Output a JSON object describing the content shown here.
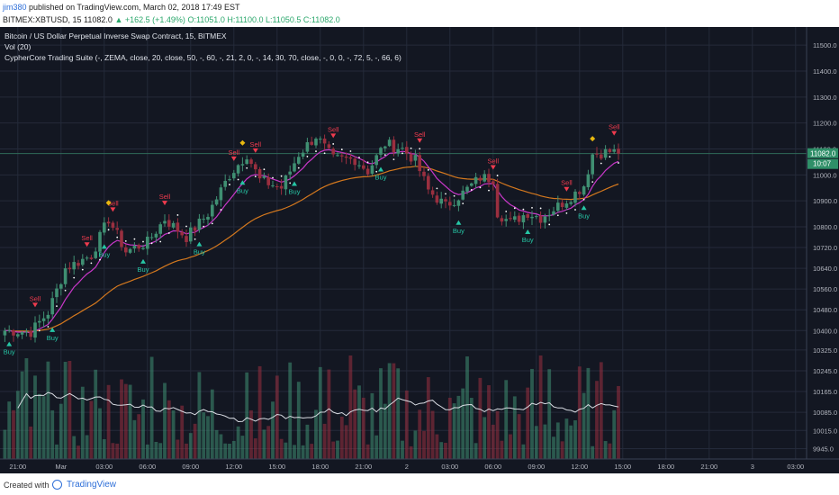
{
  "header": {
    "author": "jim380",
    "published": "published on TradingView.com, March 02, 2018 17:49 EST",
    "symbol": "BITMEX:XBTUSD, 15",
    "last_price": "11082.0",
    "change": "+162.5 (+1.49%)",
    "ohlc": "O:11051.0 H:11100.0 L:11050.5 C:11082.0"
  },
  "footer": {
    "created_with": "Created with",
    "brand": "TradingView"
  },
  "colors": {
    "background": "#131722",
    "grid": "#242a3a",
    "up": "#3f8f72",
    "down": "#9a2f3f",
    "zema": "#c837c8",
    "slow_ema": "#d4781e",
    "trail": "#ffffff",
    "buy": "#26c6a5",
    "sell": "#ef3b4e",
    "diamond": "#e8b80f",
    "price_label": "#2f8f68",
    "price_line": "#2f6a58"
  },
  "chart_data": {
    "type": "candlestick",
    "title": "Bitcoin / US Dollar Perpetual Inverse Swap Contract, 15, BITMEX",
    "legend": [
      "Vol (20)",
      "CypherCore Trading Suite (-, ZEMA, close, 20, close, 50, -, 60, -, 21, 2, 0, -, 14, 30, 70, close, -, 0, 0, -, 72, 5, -, 66, 6)"
    ],
    "ylim": [
      9905,
      11570
    ],
    "y_ticks": [
      11500.0,
      11400.0,
      11300.0,
      11200.0,
      11100.0,
      11000.0,
      10900.0,
      10800.0,
      10720.0,
      10640.0,
      10560.0,
      10480.0,
      10400.0,
      10325.0,
      10245.0,
      10165.0,
      10085.0,
      10015.0,
      9945.0
    ],
    "y_tick_labels": [
      "11500.0",
      "11400.0",
      "11300.0",
      "11200.0",
      "11100.0",
      "11000.0",
      "10900.0",
      "10800.0",
      "10720.0",
      "10640.0",
      "10560.0",
      "10480.0",
      "10400.0",
      "10325.0",
      "10245.0",
      "10165.0",
      "10085.0",
      "10015.0",
      "9945.0"
    ],
    "x_ticks": [
      {
        "label": "21:00",
        "bar": 3
      },
      {
        "label": "Mar",
        "bar": 13
      },
      {
        "label": "03:00",
        "bar": 23
      },
      {
        "label": "06:00",
        "bar": 33
      },
      {
        "label": "09:00",
        "bar": 43
      },
      {
        "label": "12:00",
        "bar": 53
      },
      {
        "label": "15:00",
        "bar": 63
      },
      {
        "label": "18:00",
        "bar": 73
      },
      {
        "label": "21:00",
        "bar": 83
      },
      {
        "label": "2",
        "bar": 93
      },
      {
        "label": "03:00",
        "bar": 103
      },
      {
        "label": "06:00",
        "bar": 113
      },
      {
        "label": "09:00",
        "bar": 123
      },
      {
        "label": "12:00",
        "bar": 133
      },
      {
        "label": "15:00",
        "bar": 143
      },
      {
        "label": "18:00",
        "bar": 153
      },
      {
        "label": "21:00",
        "bar": 163
      },
      {
        "label": "3",
        "bar": 173
      },
      {
        "label": "03:00",
        "bar": 183
      }
    ],
    "last_price": 11082.0,
    "last_price_label": "11082.0",
    "countdown_label": "10:07",
    "anchors": [
      [
        0,
        10400
      ],
      [
        6,
        10395
      ],
      [
        10,
        10470
      ],
      [
        14,
        10640
      ],
      [
        20,
        10690
      ],
      [
        24,
        10830
      ],
      [
        28,
        10705
      ],
      [
        33,
        10740
      ],
      [
        37,
        10830
      ],
      [
        42,
        10760
      ],
      [
        47,
        10850
      ],
      [
        52,
        11000
      ],
      [
        56,
        11080
      ],
      [
        59,
        10980
      ],
      [
        64,
        10950
      ],
      [
        68,
        11080
      ],
      [
        72,
        11150
      ],
      [
        76,
        11060
      ],
      [
        81,
        11060
      ],
      [
        84,
        11015
      ],
      [
        88,
        11120
      ],
      [
        92,
        11100
      ],
      [
        95,
        11055
      ],
      [
        98,
        10940
      ],
      [
        102,
        10880
      ],
      [
        106,
        10930
      ],
      [
        110,
        10990
      ],
      [
        113,
        10985
      ],
      [
        114,
        10855
      ],
      [
        117,
        10815
      ],
      [
        121,
        10855
      ],
      [
        124,
        10835
      ],
      [
        128,
        10880
      ],
      [
        132,
        10930
      ],
      [
        134,
        10960
      ],
      [
        136,
        11080
      ],
      [
        140,
        11090
      ],
      [
        142,
        11085
      ]
    ],
    "n_bars": 143,
    "signals": [
      {
        "type": "buy",
        "bar": 1,
        "label": "Buy"
      },
      {
        "type": "sell",
        "bar": 7,
        "label": "Sell"
      },
      {
        "type": "buy",
        "bar": 11,
        "label": "Buy"
      },
      {
        "type": "sell",
        "bar": 19,
        "label": "Sell"
      },
      {
        "type": "buy",
        "bar": 23,
        "label": "Buy"
      },
      {
        "type": "sell",
        "bar": 25,
        "label": "Sell"
      },
      {
        "type": "buy",
        "bar": 32,
        "label": "Buy"
      },
      {
        "type": "sell",
        "bar": 37,
        "label": "Sell"
      },
      {
        "type": "buy",
        "bar": 45,
        "label": "Buy"
      },
      {
        "type": "sell",
        "bar": 53,
        "label": "Sell"
      },
      {
        "type": "buy",
        "bar": 55,
        "label": "Buy"
      },
      {
        "type": "sell",
        "bar": 58,
        "label": "Sell"
      },
      {
        "type": "buy",
        "bar": 67,
        "label": "Buy"
      },
      {
        "type": "sell",
        "bar": 76,
        "label": "Sell"
      },
      {
        "type": "buy",
        "bar": 87,
        "label": "Buy"
      },
      {
        "type": "sell",
        "bar": 96,
        "label": "Sell"
      },
      {
        "type": "buy",
        "bar": 105,
        "label": "Buy"
      },
      {
        "type": "sell",
        "bar": 113,
        "label": "Sell"
      },
      {
        "type": "buy",
        "bar": 121,
        "label": "Buy"
      },
      {
        "type": "sell",
        "bar": 130,
        "label": "Sell"
      },
      {
        "type": "buy",
        "bar": 134,
        "label": "Buy"
      },
      {
        "type": "sell",
        "bar": 141,
        "label": "Sell"
      }
    ],
    "diamonds": [
      {
        "bar": 24
      },
      {
        "bar": 55
      },
      {
        "bar": 136
      }
    ],
    "volume": {
      "type": "bar",
      "relative": true,
      "ma_period": 20
    }
  }
}
